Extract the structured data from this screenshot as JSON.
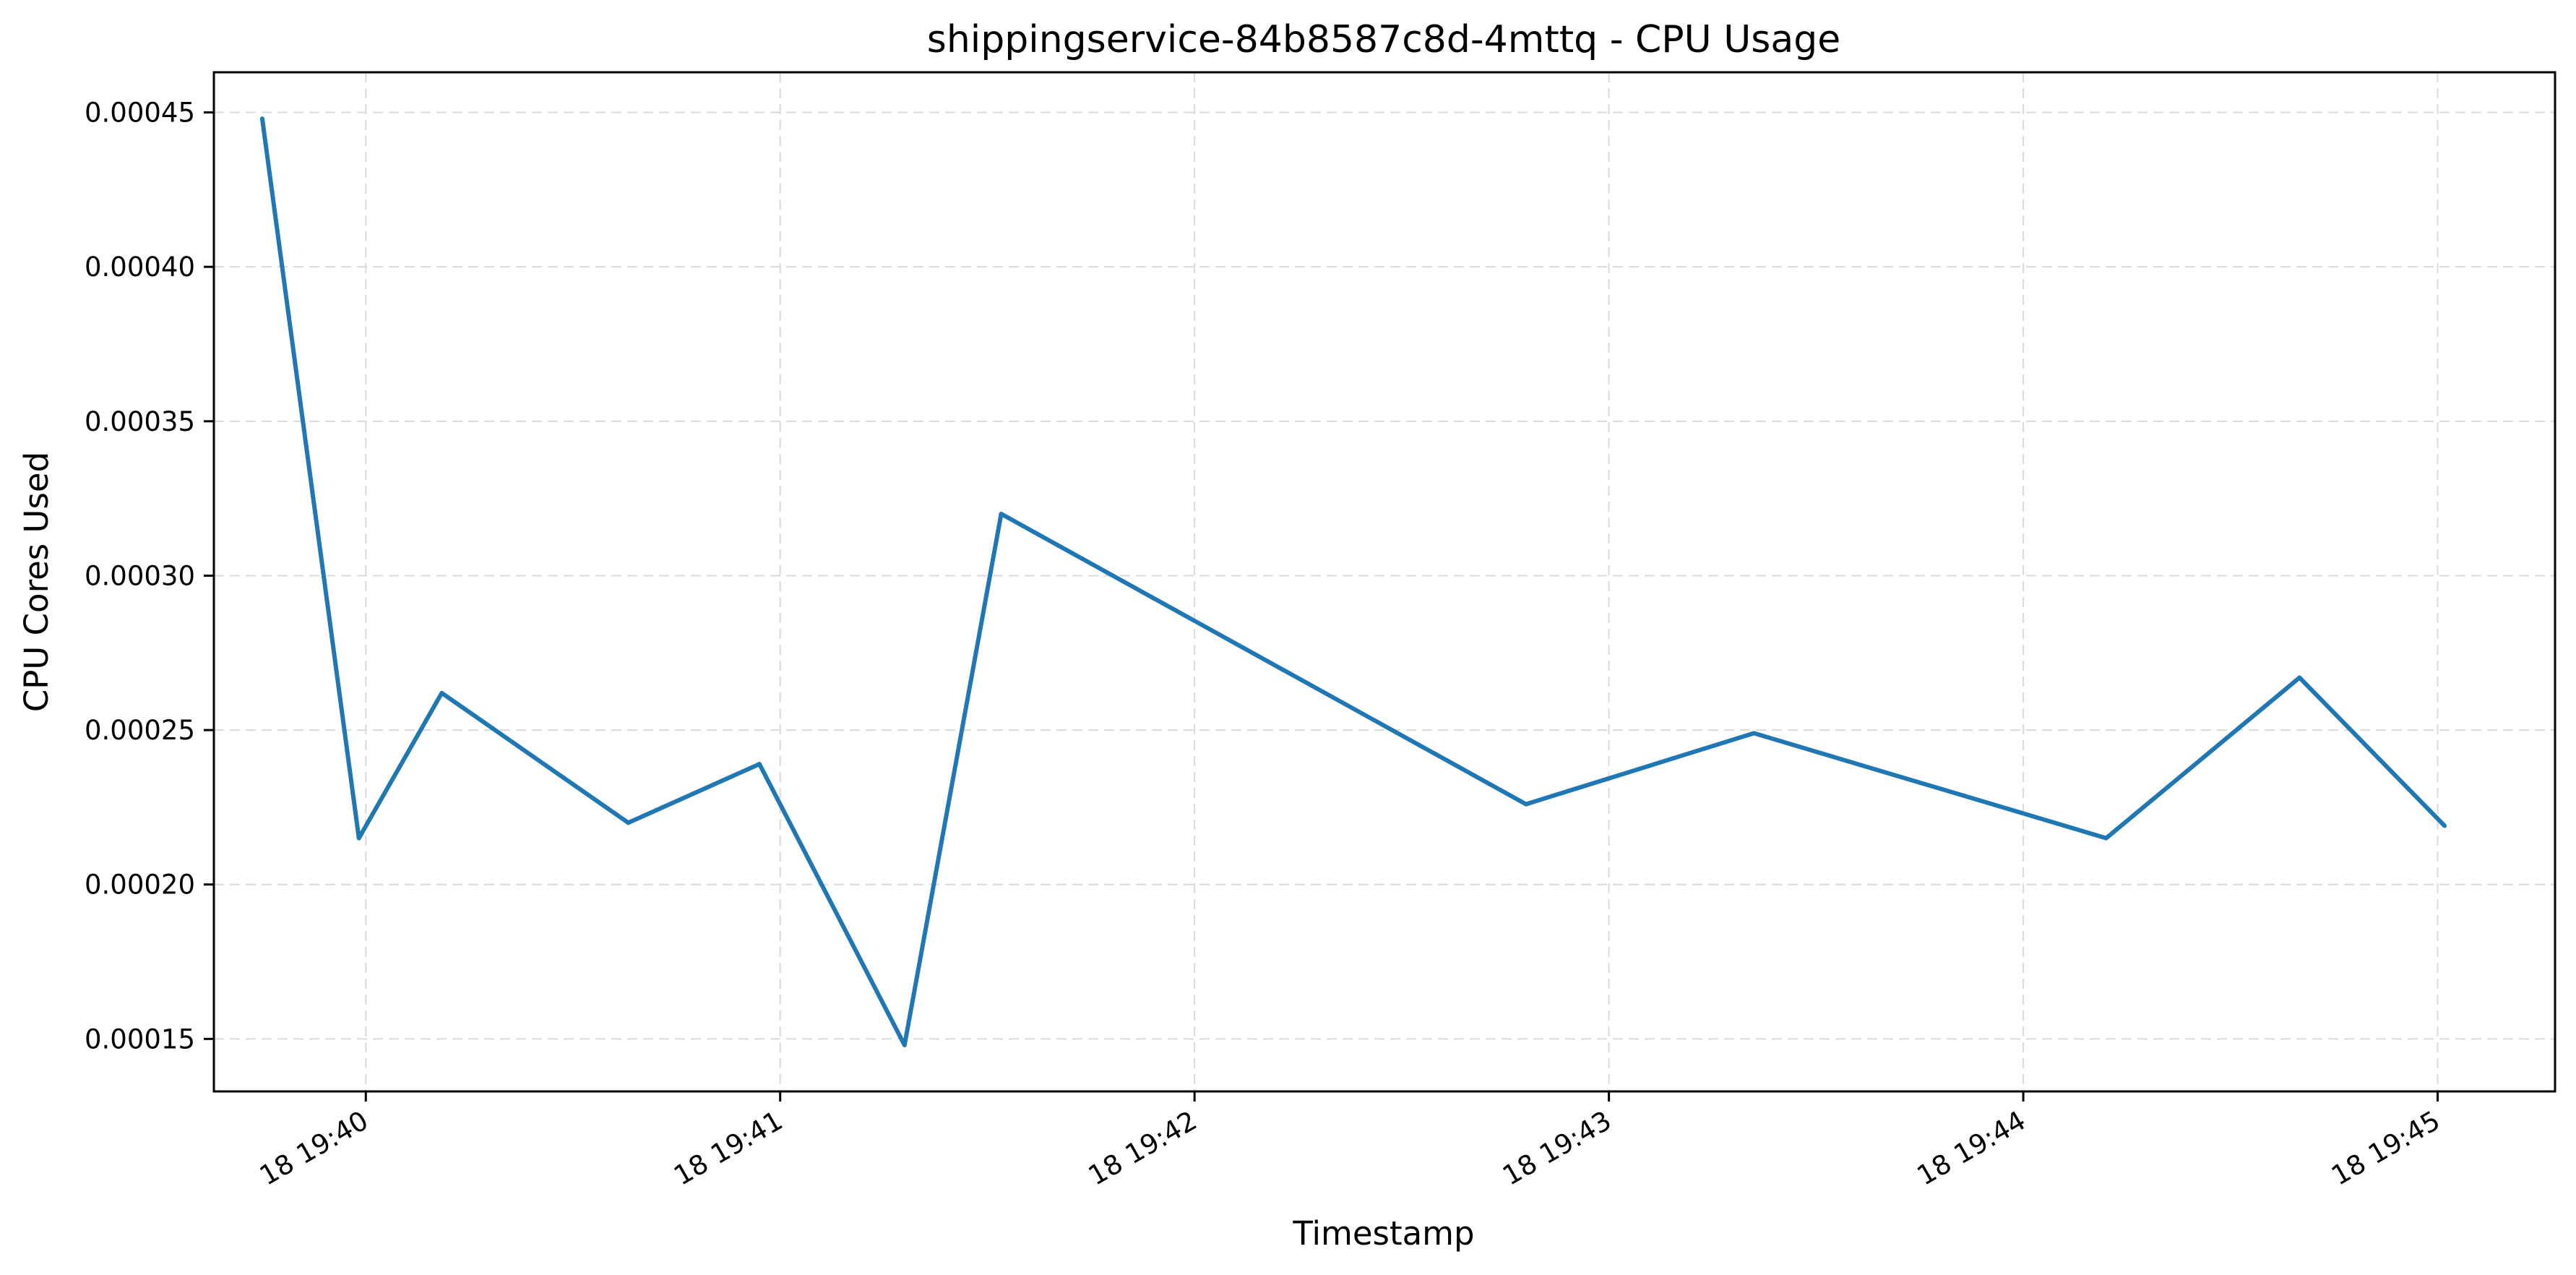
{
  "chart_data": {
    "type": "line",
    "title": "shippingservice-84b8587c8d-4mttq - CPU Usage",
    "xlabel": "Timestamp",
    "ylabel": "CPU Cores Used",
    "x_ticks": [
      "18 19:40",
      "18 19:41",
      "18 19:42",
      "18 19:43",
      "18 19:44",
      "18 19:45"
    ],
    "y_ticks": [
      "0.00015",
      "0.00020",
      "0.00025",
      "0.00030",
      "0.00035",
      "0.00040",
      "0.00045"
    ],
    "ylim": [
      0.000133,
      0.000463
    ],
    "xlim": [
      "19:39:38",
      "19:45:17"
    ],
    "grid": true,
    "series": [
      {
        "color": "#1f77b4",
        "x": [
          "19:39:45",
          "19:39:59",
          "19:40:11",
          "19:40:38",
          "19:40:57",
          "19:41:18",
          "19:41:32",
          "19:42:48",
          "19:43:21",
          "19:44:12",
          "19:44:40",
          "19:45:01"
        ],
        "y": [
          0.000448,
          0.000215,
          0.000262,
          0.00022,
          0.000239,
          0.000148,
          0.00032,
          0.000226,
          0.000249,
          0.000215,
          0.000267,
          0.000219
        ]
      }
    ]
  }
}
